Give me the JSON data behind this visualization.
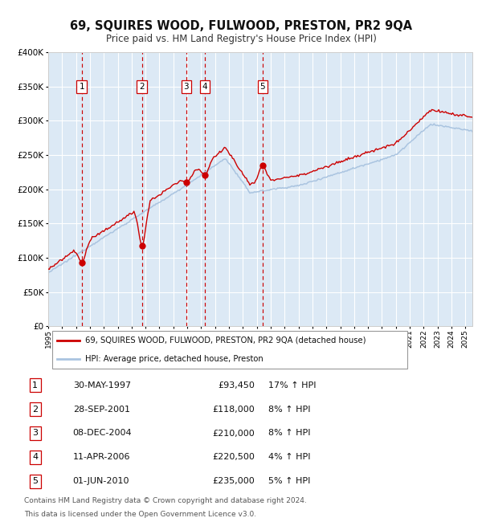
{
  "title": "69, SQUIRES WOOD, FULWOOD, PRESTON, PR2 9QA",
  "subtitle": "Price paid vs. HM Land Registry's House Price Index (HPI)",
  "legend_line1": "69, SQUIRES WOOD, FULWOOD, PRESTON, PR2 9QA (detached house)",
  "legend_line2": "HPI: Average price, detached house, Preston",
  "footer_line1": "Contains HM Land Registry data © Crown copyright and database right 2024.",
  "footer_line2": "This data is licensed under the Open Government Licence v3.0.",
  "sales": [
    {
      "label": "1",
      "date": "30-MAY-1997",
      "price": 93450,
      "pct": "17%",
      "dir": "↑",
      "x_year": 1997.41
    },
    {
      "label": "2",
      "date": "28-SEP-2001",
      "price": 118000,
      "pct": "8%",
      "dir": "↑",
      "x_year": 2001.74
    },
    {
      "label": "3",
      "date": "08-DEC-2004",
      "price": 210000,
      "pct": "8%",
      "dir": "↑",
      "x_year": 2004.93
    },
    {
      "label": "4",
      "date": "11-APR-2006",
      "price": 220500,
      "pct": "4%",
      "dir": "↑",
      "x_year": 2006.27
    },
    {
      "label": "5",
      "date": "01-JUN-2010",
      "price": 235000,
      "pct": "5%",
      "dir": "↑",
      "x_year": 2010.41
    }
  ],
  "hpi_color": "#aac4e0",
  "price_color": "#cc0000",
  "sale_dot_color": "#cc0000",
  "dashed_line_color": "#cc0000",
  "plot_bg_color": "#dce9f5",
  "grid_color": "#ffffff",
  "ylim": [
    0,
    400000
  ],
  "yticks": [
    0,
    50000,
    100000,
    150000,
    200000,
    250000,
    300000,
    350000,
    400000
  ],
  "xlim_start": 1995.0,
  "xlim_end": 2025.5,
  "xtick_years": [
    1995,
    1996,
    1997,
    1998,
    1999,
    2000,
    2001,
    2002,
    2003,
    2004,
    2005,
    2006,
    2007,
    2008,
    2009,
    2010,
    2011,
    2012,
    2013,
    2014,
    2015,
    2016,
    2017,
    2018,
    2019,
    2020,
    2021,
    2022,
    2023,
    2024,
    2025
  ]
}
